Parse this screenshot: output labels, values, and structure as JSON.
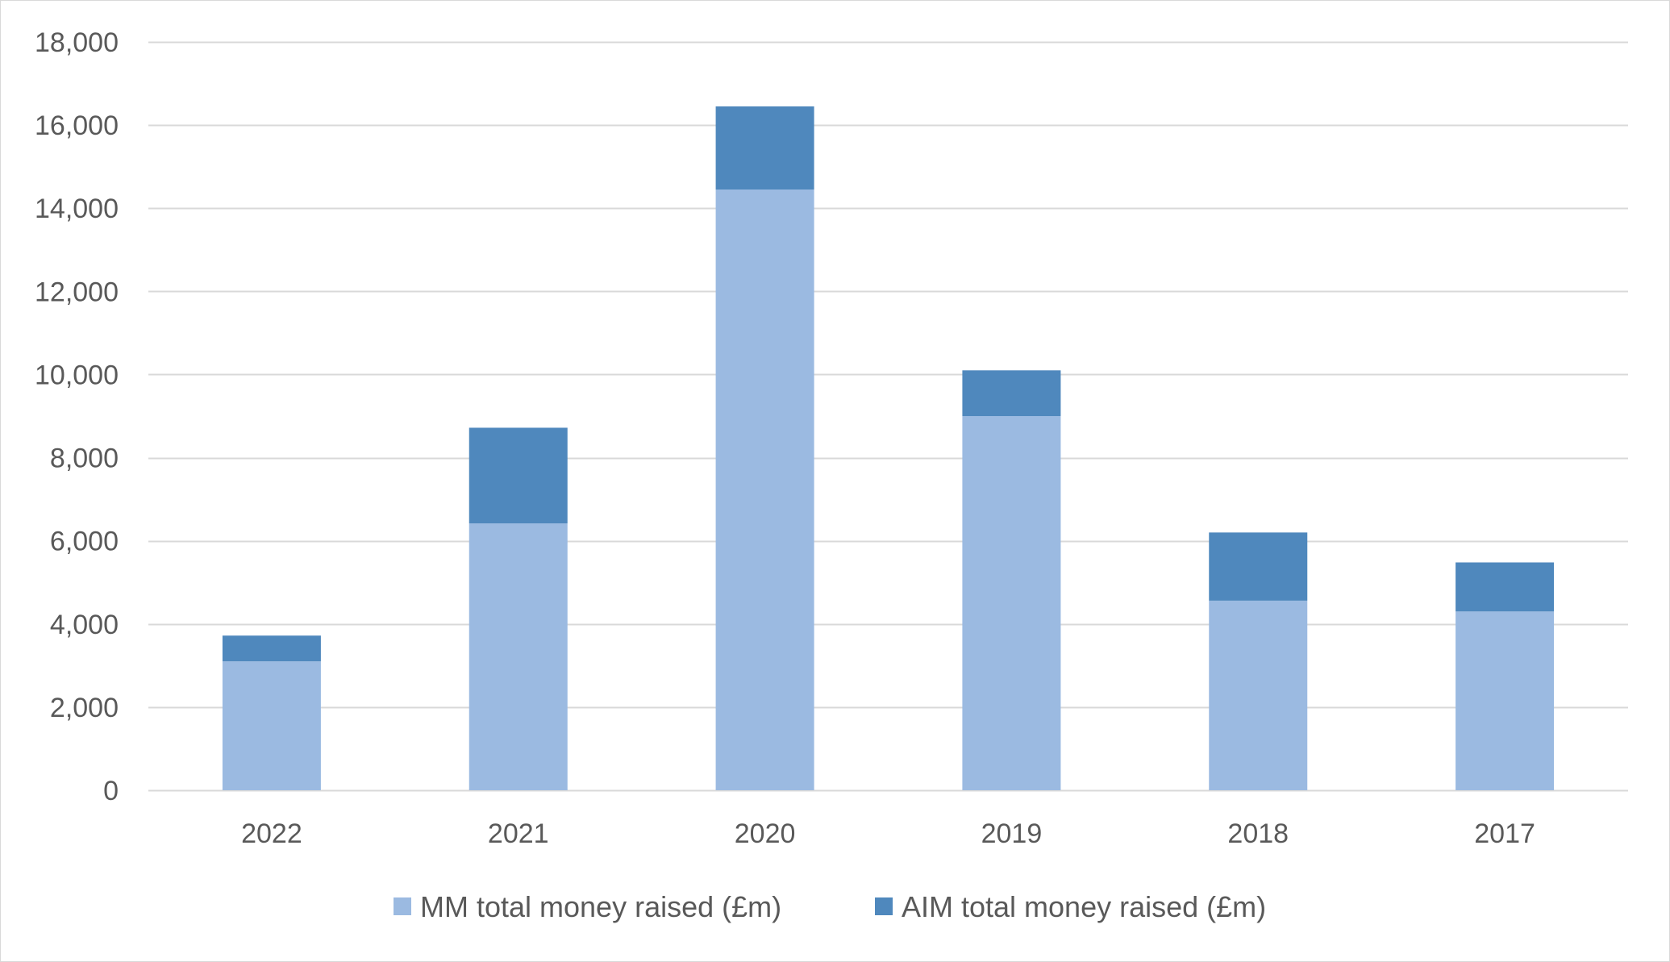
{
  "chart_data": {
    "type": "bar",
    "stacked": true,
    "categories": [
      "2022",
      "2021",
      "2020",
      "2019",
      "2018",
      "2017"
    ],
    "series": [
      {
        "name": "MM total money raised (£m)",
        "color": "#9bbae1",
        "values": [
          3100,
          6420,
          14450,
          9000,
          4560,
          4300
        ]
      },
      {
        "name": "AIM total money raised (£m)",
        "color": "#4f88bd",
        "values": [
          620,
          2300,
          2000,
          1100,
          1640,
          1180
        ]
      }
    ],
    "ylim": [
      0,
      18000
    ],
    "yticks": [
      0,
      2000,
      4000,
      6000,
      8000,
      10000,
      12000,
      14000,
      16000,
      18000
    ],
    "ytick_labels": [
      "0",
      "2,000",
      "4,000",
      "6,000",
      "8,000",
      "10,000",
      "12,000",
      "14,000",
      "16,000",
      "18,000"
    ],
    "title": "",
    "xlabel": "",
    "ylabel": "",
    "grid": true,
    "legend_position": "bottom-center",
    "gridline_color": "#d9d9d9"
  }
}
